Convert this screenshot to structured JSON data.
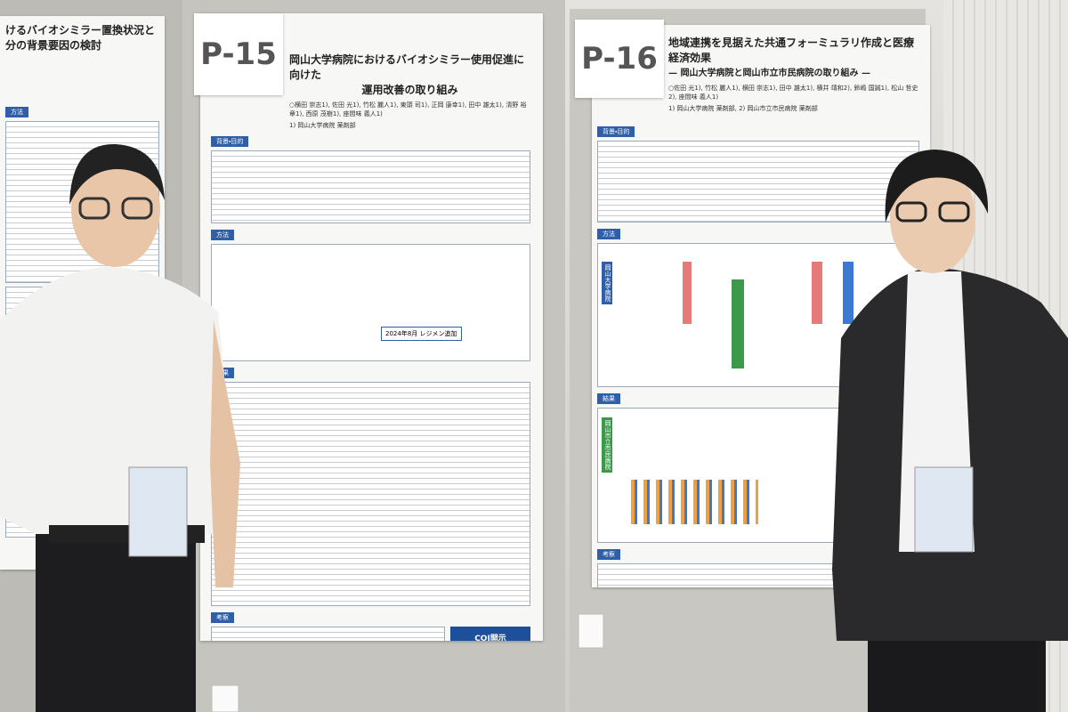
{
  "left_poster": {
    "title_lines": [
      "けるバイオシミラー置換状況と",
      "分の背景要因の検討"
    ],
    "sections": [
      "方法"
    ]
  },
  "poster_p15": {
    "number": "P-15",
    "title_lines": [
      "岡山大学病院におけるバイオシミラー使用促進に向けた",
      "運用改善の取り組み"
    ],
    "authors": "○横田 崇志1), 佐田 光1), 竹松 麗人1), 東頭 司1), 正岡 康幸1), 田中 雄太1), 清野 裕章1), 西原 茂樹1), 座間味 義人1)",
    "affiliation": "1) 岡山大学病院 薬剤部",
    "sections": [
      "背景・目的",
      "方法",
      "結果",
      "考察"
    ],
    "badge": "2024年8月 レジメン追加",
    "coi": "COI開示"
  },
  "poster_p16": {
    "number": "P-16",
    "title_lines": [
      "地域連携を見据えた共通フォーミュラリ作成と医療経済効果",
      "— 岡山大学病院と岡山市立市民病院の取り組み —"
    ],
    "authors": "○佐田 光1), 竹松 麗人1), 横田 崇志1), 田中 雄太1), 横井 靖和2), 鈴嶋 国誠1), 松山 哲史2), 座間味 義人1)",
    "affiliation": "1) 岡山大学病院 薬剤部, 2) 岡山市立市民病院 薬剤部",
    "sections": [
      "背景・目的",
      "方法",
      "結果",
      "考察"
    ],
    "side_labels": [
      "岡山大学病院",
      "岡山市立市民病院"
    ]
  }
}
